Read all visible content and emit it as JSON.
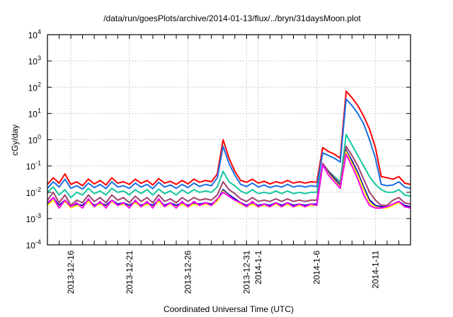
{
  "chart_data": {
    "type": "line",
    "title": "/data/run/goesPlots/archive/2014-01-13/flux/../bryn/31daysMoon.plot",
    "xlabel": "Coordinated Universal Time (UTC)",
    "ylabel": "cGy/day",
    "yscale": "log",
    "ylim": [
      0.0001,
      10000
    ],
    "xlim_days_since": "2013-12-14",
    "xlim": [
      0,
      31
    ],
    "grid": true,
    "legend": "none",
    "y_ticks": [
      {
        "base": "10",
        "exp": "4",
        "value": 4
      },
      {
        "base": "10",
        "exp": "3",
        "value": 3
      },
      {
        "base": "10",
        "exp": "2",
        "value": 2
      },
      {
        "base": "10",
        "exp": "1",
        "value": 1
      },
      {
        "base": "10",
        "exp": "0",
        "value": 0
      },
      {
        "base": "10",
        "exp": "-1",
        "value": -1
      },
      {
        "base": "10",
        "exp": "-2",
        "value": -2
      },
      {
        "base": "10",
        "exp": "-3",
        "value": -3
      },
      {
        "base": "10",
        "exp": "-4",
        "value": -4
      }
    ],
    "x_ticks": [
      {
        "label": "2013-12-16",
        "day": 2
      },
      {
        "label": "2013-12-21",
        "day": 7
      },
      {
        "label": "2013-12-26",
        "day": 12
      },
      {
        "label": "2013-12-31",
        "day": 17
      },
      {
        "label": "2014-1-1",
        "day": 18
      },
      {
        "label": "2014-1-6",
        "day": 23
      },
      {
        "label": "2014-1-11",
        "day": 28
      }
    ],
    "x_step_days": 0.5,
    "series_value_units": "log10(cGy/day)",
    "series": [
      {
        "name": "series-1",
        "color": "#ff0000",
        "values": [
          -1.7,
          -1.45,
          -1.65,
          -1.3,
          -1.7,
          -1.6,
          -1.75,
          -1.5,
          -1.68,
          -1.55,
          -1.72,
          -1.45,
          -1.65,
          -1.6,
          -1.7,
          -1.5,
          -1.66,
          -1.55,
          -1.72,
          -1.48,
          -1.65,
          -1.58,
          -1.7,
          -1.55,
          -1.68,
          -1.5,
          -1.62,
          -1.55,
          -1.6,
          -1.3,
          0.0,
          -0.7,
          -1.2,
          -1.55,
          -1.62,
          -1.5,
          -1.65,
          -1.58,
          -1.68,
          -1.6,
          -1.65,
          -1.55,
          -1.65,
          -1.6,
          -1.65,
          -1.6,
          -1.62,
          -0.3,
          -0.45,
          -0.55,
          -0.7,
          1.85,
          1.6,
          1.3,
          0.9,
          0.4,
          -0.3,
          -1.4,
          -1.45,
          -1.5,
          -1.4,
          -1.65,
          -1.7
        ]
      },
      {
        "name": "series-2",
        "color": "#1a6fe6",
        "values": [
          -1.85,
          -1.6,
          -1.8,
          -1.5,
          -1.85,
          -1.75,
          -1.88,
          -1.65,
          -1.82,
          -1.7,
          -1.86,
          -1.6,
          -1.8,
          -1.75,
          -1.85,
          -1.65,
          -1.8,
          -1.7,
          -1.86,
          -1.62,
          -1.8,
          -1.72,
          -1.85,
          -1.7,
          -1.82,
          -1.65,
          -1.78,
          -1.7,
          -1.75,
          -1.45,
          -0.25,
          -0.9,
          -1.35,
          -1.7,
          -1.78,
          -1.65,
          -1.8,
          -1.72,
          -1.82,
          -1.75,
          -1.8,
          -1.7,
          -1.8,
          -1.75,
          -1.8,
          -1.75,
          -1.78,
          -0.5,
          -0.6,
          -0.7,
          -0.85,
          1.55,
          1.3,
          1.0,
          0.6,
          0.0,
          -0.7,
          -1.7,
          -1.75,
          -1.72,
          -1.6,
          -1.8,
          -1.85
        ]
      },
      {
        "name": "series-3",
        "color": "#14c8a0",
        "values": [
          -2.0,
          -1.8,
          -2.1,
          -1.9,
          -2.2,
          -2.0,
          -2.1,
          -1.85,
          -2.05,
          -1.95,
          -2.1,
          -1.85,
          -2.0,
          -1.95,
          -2.1,
          -1.9,
          -2.05,
          -1.9,
          -2.1,
          -1.88,
          -2.05,
          -1.95,
          -2.1,
          -1.9,
          -2.05,
          -1.9,
          -2.0,
          -1.95,
          -2.0,
          -1.8,
          -1.2,
          -1.6,
          -1.75,
          -1.95,
          -2.05,
          -1.9,
          -2.05,
          -2.0,
          -2.05,
          -1.95,
          -2.05,
          -1.95,
          -2.05,
          -2.0,
          -2.05,
          -2.0,
          -2.0,
          -0.9,
          -1.2,
          -1.4,
          -1.6,
          0.2,
          -0.2,
          -0.6,
          -1.0,
          -1.4,
          -1.7,
          -1.9,
          -2.0,
          -2.0,
          -1.9,
          -2.1,
          -2.15
        ]
      },
      {
        "name": "series-4",
        "color": "#a0406a",
        "values": [
          -2.3,
          -2.0,
          -2.4,
          -2.1,
          -2.5,
          -2.3,
          -2.4,
          -2.1,
          -2.35,
          -2.2,
          -2.4,
          -2.1,
          -2.3,
          -2.2,
          -2.4,
          -2.15,
          -2.35,
          -2.2,
          -2.4,
          -2.1,
          -2.35,
          -2.25,
          -2.4,
          -2.2,
          -2.35,
          -2.2,
          -2.3,
          -2.25,
          -2.3,
          -2.1,
          -1.6,
          -1.9,
          -2.05,
          -2.25,
          -2.35,
          -2.2,
          -2.35,
          -2.3,
          -2.35,
          -2.25,
          -2.35,
          -2.25,
          -2.35,
          -2.3,
          -2.35,
          -2.3,
          -2.3,
          -0.9,
          -1.2,
          -1.45,
          -1.7,
          -0.25,
          -0.6,
          -1.0,
          -1.5,
          -2.0,
          -2.3,
          -2.5,
          -2.5,
          -2.3,
          -2.2,
          -2.4,
          -2.45
        ]
      },
      {
        "name": "series-5",
        "color": "#0000c0",
        "values": [
          -2.45,
          -2.2,
          -2.5,
          -2.3,
          -2.55,
          -2.45,
          -2.5,
          -2.3,
          -2.5,
          -2.4,
          -2.5,
          -2.3,
          -2.45,
          -2.4,
          -2.5,
          -2.35,
          -2.5,
          -2.4,
          -2.5,
          -2.3,
          -2.5,
          -2.4,
          -2.5,
          -2.4,
          -2.5,
          -2.4,
          -2.45,
          -2.4,
          -2.45,
          -2.3,
          -1.9,
          -2.1,
          -2.25,
          -2.4,
          -2.5,
          -2.4,
          -2.5,
          -2.45,
          -2.5,
          -2.4,
          -2.5,
          -2.4,
          -2.5,
          -2.45,
          -2.5,
          -2.45,
          -2.45,
          -0.95,
          -1.25,
          -1.5,
          -1.75,
          -0.4,
          -0.8,
          -1.25,
          -1.8,
          -2.3,
          -2.5,
          -2.55,
          -2.55,
          -2.45,
          -2.35,
          -2.5,
          -2.55
        ]
      },
      {
        "name": "series-6",
        "color": "#ffff00",
        "values": [
          -2.5,
          -2.3,
          -2.55,
          -2.35,
          -2.6,
          -2.5,
          -2.55,
          -2.35,
          -2.55,
          -2.45,
          -2.55,
          -2.35,
          -2.5,
          -2.45,
          -2.55,
          -2.4,
          -2.55,
          -2.45,
          -2.55,
          -2.35,
          -2.55,
          -2.45,
          -2.55,
          -2.45,
          -2.55,
          -2.45,
          -2.5,
          -2.45,
          -2.5,
          -2.35,
          -1.95,
          -2.15,
          -2.3,
          -2.45,
          -2.55,
          -2.45,
          -2.55,
          -2.5,
          -2.55,
          -2.45,
          -2.55,
          -2.45,
          -2.55,
          -2.5,
          -2.55,
          -2.5,
          -2.5,
          -0.95,
          -1.3,
          -1.55,
          -1.8,
          -0.45,
          -0.9,
          -1.35,
          -1.9,
          -2.4,
          -2.55,
          -2.6,
          -2.6,
          -2.5,
          -2.4,
          -2.55,
          -2.6
        ]
      },
      {
        "name": "series-7",
        "color": "#ff00ff",
        "values": [
          -2.4,
          -2.2,
          -2.6,
          -2.3,
          -2.55,
          -2.4,
          -2.6,
          -2.25,
          -2.55,
          -2.35,
          -2.6,
          -2.3,
          -2.5,
          -2.4,
          -2.6,
          -2.3,
          -2.55,
          -2.35,
          -2.6,
          -2.25,
          -2.55,
          -2.4,
          -2.6,
          -2.35,
          -2.55,
          -2.35,
          -2.5,
          -2.4,
          -2.5,
          -2.25,
          -2.0,
          -2.15,
          -2.3,
          -2.4,
          -2.55,
          -2.35,
          -2.55,
          -2.45,
          -2.55,
          -2.4,
          -2.55,
          -2.4,
          -2.55,
          -2.45,
          -2.55,
          -2.45,
          -2.5,
          -0.95,
          -1.35,
          -1.6,
          -1.85,
          -0.55,
          -1.0,
          -1.5,
          -2.1,
          -2.5,
          -2.6,
          -2.6,
          -2.55,
          -2.45,
          -2.35,
          -2.55,
          -2.6
        ]
      }
    ]
  }
}
